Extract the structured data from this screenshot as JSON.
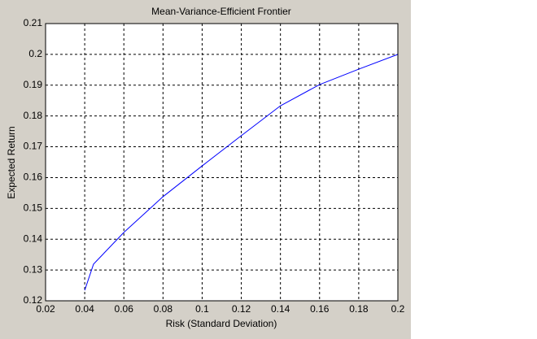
{
  "chart_data": {
    "type": "line",
    "title": "Mean-Variance-Efficient Frontier",
    "x_label": "Risk (Standard Deviation)",
    "y_label": "Expected Return",
    "x": [
      0.04,
      0.0445,
      0.06,
      0.08,
      0.1,
      0.12,
      0.14,
      0.16,
      0.18,
      0.2
    ],
    "series": [
      {
        "name": "Efficient Frontier",
        "color": "#0000ff",
        "values": [
          0.1234,
          0.1319,
          0.1422,
          0.1538,
          0.1638,
          0.1736,
          0.1833,
          0.1902,
          0.1952,
          0.2
        ]
      }
    ],
    "xlim": [
      0.02,
      0.2
    ],
    "xticks": [
      0.02,
      0.04,
      0.06,
      0.08,
      0.1,
      0.12,
      0.14,
      0.16,
      0.18,
      0.2
    ],
    "ylim": [
      0.12,
      0.21
    ],
    "yticks": [
      0.12,
      0.13,
      0.14,
      0.15,
      0.16,
      0.17,
      0.18,
      0.19,
      0.2,
      0.21
    ],
    "grid": true
  }
}
